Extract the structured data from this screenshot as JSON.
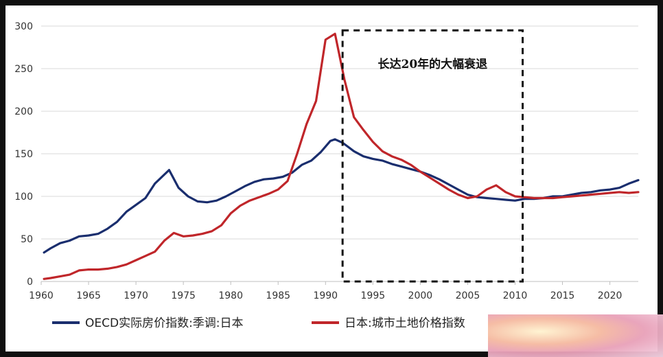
{
  "chart_data": {
    "type": "line",
    "title": "",
    "xlabel": "",
    "ylabel": "",
    "xlim": [
      1960,
      2023
    ],
    "ylim": [
      0,
      300
    ],
    "x_ticks": [
      1960,
      1965,
      1970,
      1975,
      1980,
      1985,
      1990,
      1995,
      2000,
      2005,
      2010,
      2015,
      2020
    ],
    "y_ticks": [
      0,
      50,
      100,
      150,
      200,
      250,
      300
    ],
    "grid": "horizontal",
    "legend_position": "bottom",
    "annotation": {
      "text": "长达20年的大幅衰退",
      "x_range": [
        1991.8,
        2010.8
      ],
      "y_range": [
        0,
        295
      ]
    },
    "series": [
      {
        "name": "OECD实际房价指数:季调:日本",
        "color": "#1a2e6e",
        "points": [
          [
            1960.3,
            34
          ],
          [
            1961,
            39
          ],
          [
            1962,
            45
          ],
          [
            1963,
            48
          ],
          [
            1964,
            53
          ],
          [
            1965,
            54
          ],
          [
            1966,
            56
          ],
          [
            1967,
            62
          ],
          [
            1968,
            70
          ],
          [
            1969,
            82
          ],
          [
            1970,
            90
          ],
          [
            1971,
            98
          ],
          [
            1972,
            115
          ],
          [
            1973.5,
            131
          ],
          [
            1974.5,
            110
          ],
          [
            1975.5,
            100
          ],
          [
            1976.5,
            94
          ],
          [
            1977.5,
            93
          ],
          [
            1978.5,
            95
          ],
          [
            1979.5,
            100
          ],
          [
            1980.5,
            106
          ],
          [
            1981.5,
            112
          ],
          [
            1982.5,
            117
          ],
          [
            1983.5,
            120
          ],
          [
            1984.5,
            121
          ],
          [
            1985.5,
            123
          ],
          [
            1986.5,
            128
          ],
          [
            1987.5,
            137
          ],
          [
            1988.5,
            142
          ],
          [
            1989.5,
            152
          ],
          [
            1990.5,
            165
          ],
          [
            1991,
            167
          ],
          [
            1991.8,
            163
          ],
          [
            1993,
            153
          ],
          [
            1994,
            147
          ],
          [
            1995,
            144
          ],
          [
            1996,
            142
          ],
          [
            1997,
            138
          ],
          [
            1998,
            135
          ],
          [
            1999,
            132
          ],
          [
            2000,
            129
          ],
          [
            2001,
            125
          ],
          [
            2002,
            120
          ],
          [
            2003,
            114
          ],
          [
            2004,
            108
          ],
          [
            2005,
            102
          ],
          [
            2006,
            99
          ],
          [
            2007,
            98
          ],
          [
            2008,
            97
          ],
          [
            2009,
            96
          ],
          [
            2010,
            95
          ],
          [
            2011,
            97
          ],
          [
            2012,
            97
          ],
          [
            2013,
            98
          ],
          [
            2014,
            100
          ],
          [
            2015,
            100
          ],
          [
            2016,
            102
          ],
          [
            2017,
            104
          ],
          [
            2018,
            105
          ],
          [
            2019,
            107
          ],
          [
            2020,
            108
          ],
          [
            2021,
            110
          ],
          [
            2022,
            115
          ],
          [
            2023,
            119
          ]
        ]
      },
      {
        "name": "日本:城市土地价格指数",
        "color": "#c0262a",
        "points": [
          [
            1960.3,
            3
          ],
          [
            1961,
            4
          ],
          [
            1962,
            6
          ],
          [
            1963,
            8
          ],
          [
            1964,
            13
          ],
          [
            1965,
            14
          ],
          [
            1966,
            14
          ],
          [
            1967,
            15
          ],
          [
            1968,
            17
          ],
          [
            1969,
            20
          ],
          [
            1970,
            25
          ],
          [
            1971,
            30
          ],
          [
            1972,
            35
          ],
          [
            1973,
            48
          ],
          [
            1974,
            57
          ],
          [
            1975,
            53
          ],
          [
            1976,
            54
          ],
          [
            1977,
            56
          ],
          [
            1978,
            59
          ],
          [
            1979,
            66
          ],
          [
            1980,
            80
          ],
          [
            1981,
            89
          ],
          [
            1982,
            95
          ],
          [
            1983,
            99
          ],
          [
            1984,
            103
          ],
          [
            1985,
            108
          ],
          [
            1986,
            118
          ],
          [
            1987,
            150
          ],
          [
            1988,
            185
          ],
          [
            1989,
            212
          ],
          [
            1990,
            284
          ],
          [
            1991,
            291
          ],
          [
            1992,
            237
          ],
          [
            1993,
            193
          ],
          [
            1994,
            178
          ],
          [
            1995,
            164
          ],
          [
            1996,
            153
          ],
          [
            1997,
            147
          ],
          [
            1998,
            143
          ],
          [
            1999,
            137
          ],
          [
            2000,
            129
          ],
          [
            2001,
            122
          ],
          [
            2002,
            115
          ],
          [
            2003,
            108
          ],
          [
            2004,
            102
          ],
          [
            2005,
            98
          ],
          [
            2006,
            100
          ],
          [
            2007,
            108
          ],
          [
            2008,
            113
          ],
          [
            2009,
            105
          ],
          [
            2010,
            100
          ],
          [
            2011,
            99
          ],
          [
            2012,
            98
          ],
          [
            2013,
            98
          ],
          [
            2014,
            98
          ],
          [
            2015,
            99
          ],
          [
            2016,
            100
          ],
          [
            2017,
            101
          ],
          [
            2018,
            102
          ],
          [
            2019,
            103
          ],
          [
            2020,
            104
          ],
          [
            2021,
            105
          ],
          [
            2022,
            104
          ],
          [
            2023,
            105
          ]
        ]
      }
    ]
  }
}
